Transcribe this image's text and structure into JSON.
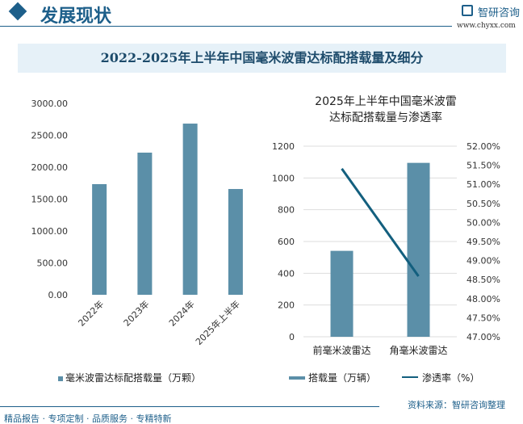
{
  "header": {
    "section_title": "发展现状",
    "logo_text": "智研咨询",
    "logo_url": "www.chyxx.com"
  },
  "title": "2022-2025年上半年中国毫米波雷达标配搭载量及细分",
  "chart_data": [
    {
      "type": "bar",
      "title": "",
      "categories": [
        "2022年",
        "2023年",
        "2024年",
        "2025年上半年"
      ],
      "values": [
        1734,
        2228,
        2683,
        1658
      ],
      "ylim": [
        0,
        3000
      ],
      "yticks": [
        "0.00",
        "500.00",
        "1000.00",
        "1500.00",
        "2000.00",
        "2500.00",
        "3000.00"
      ],
      "legend": "毫米波雷达标配搭载量（万颗）",
      "color": "#5b8fa8"
    },
    {
      "type": "bar+line",
      "title": "2025年上半年中国毫米波雷达标配搭载量与渗透率",
      "title_lines": [
        "2025年上半年中国毫米波雷",
        "达标配搭载量与渗透率"
      ],
      "categories": [
        "前毫米波雷达",
        "角毫米波雷达"
      ],
      "series": [
        {
          "name": "搭载量（万辆）",
          "type": "bar",
          "values": [
            541,
            1095
          ],
          "color": "#5b8fa8"
        },
        {
          "name": "渗透率（%）",
          "type": "line",
          "values": [
            51.41,
            48.59
          ],
          "color": "#135f7e"
        }
      ],
      "ylim": [
        0,
        1200
      ],
      "y2lim": [
        47,
        52
      ],
      "yticks": [
        "0",
        "200",
        "400",
        "600",
        "800",
        "1000",
        "1200"
      ],
      "y2ticks": [
        "47.00%",
        "47.50%",
        "48.00%",
        "48.50%",
        "49.00%",
        "49.50%",
        "50.00%",
        "50.50%",
        "51.00%",
        "51.50%",
        "52.00%"
      ]
    }
  ],
  "footer": {
    "source": "资料来源：智研咨询整理",
    "tagline": "精品报告 · 专项定制 · 品质服务 · 专精特新"
  }
}
